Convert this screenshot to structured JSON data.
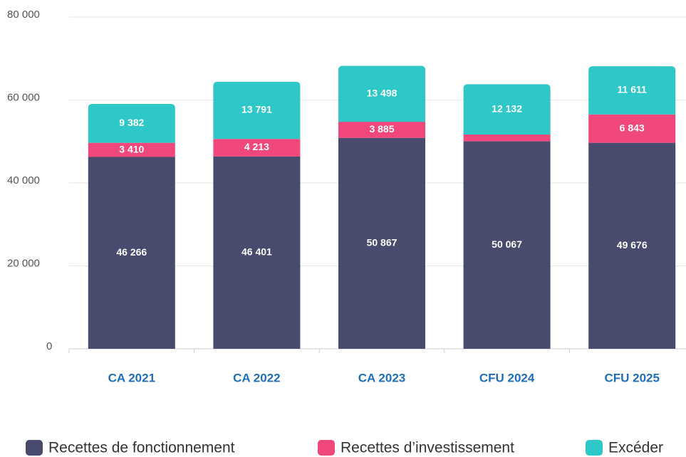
{
  "chart_data": {
    "type": "stacked_bar",
    "categories": [
      "CA 2021",
      "CA 2022",
      "CA 2023",
      "CFU 2024",
      "CFU 2025"
    ],
    "series": [
      {
        "name": "Recettes de fonctionnement",
        "color": "#484a6e",
        "values": [
          46266,
          46401,
          50867,
          50067,
          49676
        ],
        "value_labels": [
          "46 266",
          "46 401",
          "50 867",
          "50 067",
          "49 676"
        ]
      },
      {
        "name": "Recettes d’investissement",
        "color": "#f0487a",
        "values": [
          3410,
          4213,
          3885,
          1600,
          6843
        ],
        "value_labels": [
          "3 410",
          "4 213",
          "3 885",
          null,
          "6 843"
        ]
      },
      {
        "name": "Excéder",
        "color": "#2ec8c8",
        "values": [
          9382,
          13791,
          13498,
          12132,
          11611
        ],
        "value_labels": [
          "9 382",
          "13 791",
          "13 498",
          "12 132",
          "11 611"
        ]
      }
    ],
    "ylim": [
      0,
      80000
    ],
    "yticks": [
      0,
      {
        "value": 20000,
        "label": "20 000"
      },
      {
        "value": 40000,
        "label": "40 000"
      },
      {
        "value": 60000,
        "label": "60 000"
      },
      {
        "value": 80000,
        "label": "80 000"
      }
    ],
    "grid": true
  }
}
